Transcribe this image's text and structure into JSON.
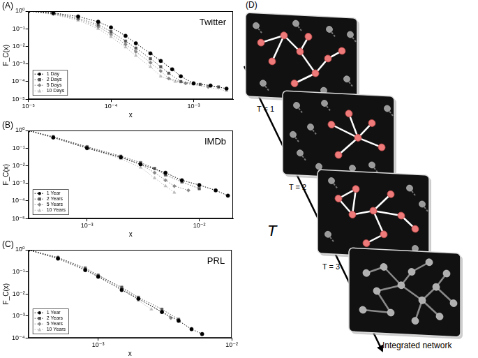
{
  "chart_data": [
    {
      "type": "line",
      "panel": "(A)",
      "title": "Twitter",
      "x_label": "x",
      "y_label": "F_C(x)",
      "log": true,
      "grid": false,
      "legend": "lower left",
      "xlim": [
        1e-05,
        0.003
      ],
      "xticks": [
        {
          "value": 1e-05,
          "label": "10⁻⁵"
        },
        {
          "value": 0.0001,
          "label": "10⁻⁴"
        },
        {
          "value": 0.001,
          "label": "10⁻³"
        }
      ],
      "ylim": [
        1e-05,
        1
      ],
      "yticks": [
        {
          "value": 1e-05,
          "label": "10⁻⁵"
        },
        {
          "value": 0.0001,
          "label": "10⁻⁴"
        },
        {
          "value": 0.001,
          "label": "10⁻³"
        },
        {
          "value": 0.01,
          "label": "10⁻²"
        },
        {
          "value": 0.1,
          "label": "10⁻¹"
        },
        {
          "value": 1,
          "label": "10⁰"
        }
      ],
      "series": [
        {
          "name": "1 Day",
          "color": "#000000",
          "marker": "circle",
          "line_style": "dotted",
          "x": [
            1e-05,
            2e-05,
            4e-05,
            7e-05,
            0.0001,
            0.00015,
            0.0002,
            0.0003,
            0.0004,
            0.00055,
            0.0007,
            0.001,
            0.0016,
            0.0025
          ],
          "values": [
            1,
            0.8,
            0.5,
            0.25,
            0.12,
            0.04,
            0.015,
            0.004,
            0.0015,
            0.0005,
            0.0002,
            8e-05,
            6e-05,
            4e-05
          ]
        },
        {
          "name": "2 Days",
          "color": "#555555",
          "marker": "square",
          "line_style": "dotted",
          "x": [
            1e-05,
            2e-05,
            4e-05,
            7e-05,
            0.0001,
            0.00015,
            0.0002,
            0.0003,
            0.0004,
            0.0005,
            0.0007,
            0.0012,
            0.002
          ],
          "values": [
            1,
            0.75,
            0.4,
            0.17,
            0.07,
            0.02,
            0.008,
            0.002,
            0.0007,
            0.0003,
            0.0001,
            7e-05,
            5e-05
          ]
        },
        {
          "name": "5 Days",
          "color": "#888888",
          "marker": "diamond",
          "line_style": "dotted",
          "x": [
            1e-05,
            2e-05,
            4e-05,
            7e-05,
            0.0001,
            0.00015,
            0.0002,
            0.0003,
            0.0004,
            0.0005,
            0.0008,
            0.0015
          ],
          "values": [
            1,
            0.7,
            0.35,
            0.13,
            0.05,
            0.013,
            0.005,
            0.0012,
            0.0004,
            0.00015,
            8e-05,
            5e-05
          ]
        },
        {
          "name": "10 Days",
          "color": "#bbbbbb",
          "marker": "triangle",
          "line_style": "dotted",
          "x": [
            1e-05,
            2e-05,
            4e-05,
            7e-05,
            0.0001,
            0.00015,
            0.0002,
            0.0003,
            0.0004,
            0.0006,
            0.001,
            0.0025
          ],
          "values": [
            1,
            0.65,
            0.3,
            0.1,
            0.035,
            0.009,
            0.003,
            0.0007,
            0.0002,
            0.0001,
            7e-05,
            3e-05
          ]
        }
      ]
    },
    {
      "type": "line",
      "panel": "(B)",
      "title": "IMDb",
      "x_label": "x",
      "y_label": "F_C(x)",
      "log": true,
      "grid": false,
      "legend": "lower left",
      "xlim": [
        0.0003,
        0.02
      ],
      "xticks": [
        {
          "value": 0.001,
          "label": "10⁻³"
        },
        {
          "value": 0.01,
          "label": "10⁻²"
        }
      ],
      "ylim": [
        1e-05,
        1
      ],
      "yticks": [
        {
          "value": 1e-05,
          "label": "10⁻⁵"
        },
        {
          "value": 0.0001,
          "label": "10⁻⁴"
        },
        {
          "value": 0.001,
          "label": "10⁻³"
        },
        {
          "value": 0.01,
          "label": "10⁻²"
        },
        {
          "value": 0.1,
          "label": "10⁻¹"
        },
        {
          "value": 1,
          "label": "10⁰"
        }
      ],
      "series": [
        {
          "name": "1 Year",
          "color": "#000000",
          "marker": "circle",
          "line_style": "dotted",
          "x": [
            0.0003,
            0.0005,
            0.001,
            0.002,
            0.003,
            0.005,
            0.007,
            0.01,
            0.014,
            0.018
          ],
          "values": [
            1,
            0.4,
            0.1,
            0.03,
            0.012,
            0.004,
            0.0015,
            0.0008,
            0.0004,
            0.0002
          ]
        },
        {
          "name": "2 Years",
          "color": "#555555",
          "marker": "square",
          "line_style": "dotted",
          "x": [
            0.0003,
            0.0005,
            0.001,
            0.002,
            0.003,
            0.004,
            0.005,
            0.007,
            0.01
          ],
          "values": [
            1,
            0.45,
            0.12,
            0.035,
            0.015,
            0.007,
            0.003,
            0.0012,
            0.0005
          ]
        },
        {
          "name": "5 Years",
          "color": "#888888",
          "marker": "diamond",
          "line_style": "dotted",
          "x": [
            0.0003,
            0.0005,
            0.001,
            0.002,
            0.003,
            0.004,
            0.005,
            0.006,
            0.008
          ],
          "values": [
            1,
            0.42,
            0.11,
            0.03,
            0.012,
            0.004,
            0.0015,
            0.0007,
            0.0004
          ]
        },
        {
          "name": "10 Years",
          "color": "#bbbbbb",
          "marker": "triangle",
          "line_style": "dotted",
          "x": [
            0.0003,
            0.0005,
            0.001,
            0.002,
            0.003,
            0.004,
            0.005,
            0.006
          ],
          "values": [
            1,
            0.4,
            0.1,
            0.025,
            0.008,
            0.002,
            0.0007,
            0.0003
          ]
        }
      ]
    },
    {
      "type": "line",
      "panel": "(C)",
      "title": "PRL",
      "x_label": "x",
      "y_label": "F_C(x)",
      "log": true,
      "grid": false,
      "legend": "lower left",
      "xlim": [
        0.0003,
        0.01
      ],
      "xticks": [
        {
          "value": 0.001,
          "label": "10⁻³"
        },
        {
          "value": 0.01,
          "label": "10⁻²"
        }
      ],
      "ylim": [
        0.0001,
        1
      ],
      "yticks": [
        {
          "value": 0.0001,
          "label": "10⁻⁴"
        },
        {
          "value": 0.001,
          "label": "10⁻³"
        },
        {
          "value": 0.01,
          "label": "10⁻²"
        },
        {
          "value": 0.1,
          "label": "10⁻¹"
        },
        {
          "value": 1,
          "label": "10⁰"
        }
      ],
      "series": [
        {
          "name": "1 Year",
          "color": "#000000",
          "marker": "circle",
          "line_style": "dotted",
          "x": [
            0.0003,
            0.0005,
            0.0008,
            0.001,
            0.0015,
            0.002,
            0.003,
            0.004,
            0.005,
            0.006
          ],
          "values": [
            1,
            0.4,
            0.12,
            0.06,
            0.015,
            0.006,
            0.0015,
            0.0006,
            0.00025,
            0.00015
          ]
        },
        {
          "name": "2 Years",
          "color": "#555555",
          "marker": "square",
          "line_style": "dotted",
          "x": [
            0.0003,
            0.0005,
            0.0008,
            0.001,
            0.0015,
            0.002,
            0.003,
            0.004
          ],
          "values": [
            1,
            0.45,
            0.15,
            0.07,
            0.02,
            0.007,
            0.002,
            0.0007
          ]
        },
        {
          "name": "5 Years",
          "color": "#888888",
          "marker": "diamond",
          "line_style": "dotted",
          "x": [
            0.0003,
            0.0005,
            0.0008,
            0.001,
            0.0015,
            0.002,
            0.003,
            0.0035
          ],
          "values": [
            1,
            0.45,
            0.14,
            0.07,
            0.018,
            0.006,
            0.0015,
            0.0008
          ]
        },
        {
          "name": "10 Years",
          "color": "#bbbbbb",
          "marker": "triangle",
          "line_style": "dotted",
          "x": [
            0.0003,
            0.0005,
            0.0008,
            0.001,
            0.0015,
            0.002,
            0.0025
          ],
          "values": [
            1,
            0.42,
            0.13,
            0.065,
            0.016,
            0.005,
            0.002
          ]
        }
      ]
    }
  ],
  "diagram": {
    "label": "(D)",
    "axis_label": "T",
    "frames": [
      "T = 1",
      "T = 2",
      "T = 3"
    ],
    "integrated": "Integrated network"
  }
}
